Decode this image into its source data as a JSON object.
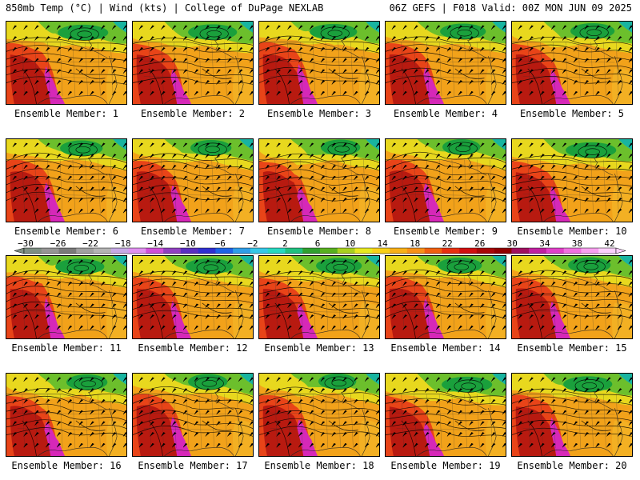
{
  "header": {
    "left": "850mb Temp (°C) | Wind (kts) | College of DuPage NEXLAB",
    "right": "06Z GEFS | F018 Valid: 00Z MON JUN 09 2025"
  },
  "members": [
    {
      "label": "Ensemble Member: 1"
    },
    {
      "label": "Ensemble Member: 2"
    },
    {
      "label": "Ensemble Member: 3"
    },
    {
      "label": "Ensemble Member: 4"
    },
    {
      "label": "Ensemble Member: 5"
    },
    {
      "label": "Ensemble Member: 6"
    },
    {
      "label": "Ensemble Member: 7"
    },
    {
      "label": "Ensemble Member: 8"
    },
    {
      "label": "Ensemble Member: 9"
    },
    {
      "label": "Ensemble Member: 10"
    },
    {
      "label": "Ensemble Member: 11"
    },
    {
      "label": "Ensemble Member: 12"
    },
    {
      "label": "Ensemble Member: 13"
    },
    {
      "label": "Ensemble Member: 14"
    },
    {
      "label": "Ensemble Member: 15"
    },
    {
      "label": "Ensemble Member: 16"
    },
    {
      "label": "Ensemble Member: 17"
    },
    {
      "label": "Ensemble Member: 18"
    },
    {
      "label": "Ensemble Member: 19"
    },
    {
      "label": "Ensemble Member: 20"
    }
  ],
  "colorbar": {
    "ticks": [
      "-30",
      "-26",
      "-22",
      "-18",
      "-14",
      "-10",
      "-6",
      "-2",
      "2",
      "6",
      "10",
      "14",
      "18",
      "22",
      "26",
      "30",
      "34",
      "38",
      "42"
    ],
    "colors": [
      "#7f8f84",
      "#959595",
      "#7a7a7a",
      "#a0a0a0",
      "#b4b4b4",
      "#c7a9e6",
      "#e090f0",
      "#d050d8",
      "#9040c0",
      "#5a2fc0",
      "#3030d0",
      "#1e64e6",
      "#2f9ee8",
      "#36c8e8",
      "#28d8c0",
      "#20c080",
      "#30a030",
      "#58b020",
      "#a8d020",
      "#e8e820",
      "#f8d018",
      "#f8b018",
      "#f89018",
      "#f06010",
      "#e83010",
      "#d01010",
      "#a80808",
      "#900000",
      "#a01060",
      "#c020a0",
      "#e040c8",
      "#f070e0",
      "#f8a0f0",
      "#fcd0fc"
    ]
  },
  "legend_colors": {
    "cold": "#1aa03c",
    "cool": "#6cbf2c",
    "mild": "#e8d81e",
    "warm": "#f2a21a",
    "hot": "#e84418",
    "very_hot": "#b81a10",
    "extreme": "#d628b8"
  }
}
